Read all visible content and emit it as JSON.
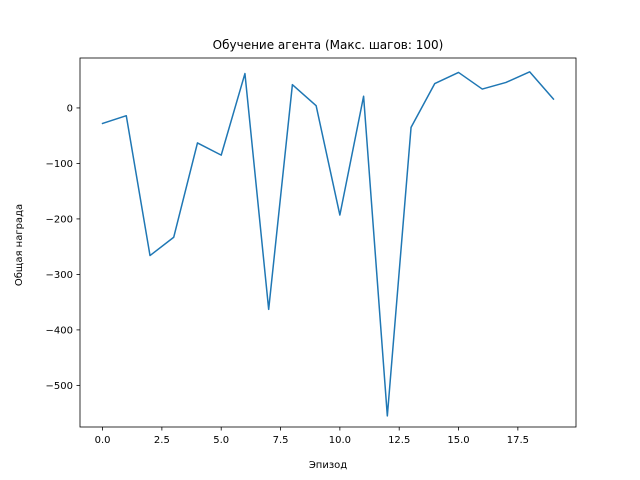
{
  "chart_data": {
    "type": "line",
    "title": "Обучение агента (Макс. шагов: 100)",
    "xlabel": "Эпизод",
    "ylabel": "Общая награда",
    "xlim": [
      -0.95,
      19.95
    ],
    "ylim": [
      -575,
      90
    ],
    "xticks": [
      0.0,
      2.5,
      5.0,
      7.5,
      10.0,
      12.5,
      15.0,
      17.5
    ],
    "xtick_labels": [
      "0.0",
      "2.5",
      "5.0",
      "7.5",
      "10.0",
      "12.5",
      "15.0",
      "17.5"
    ],
    "yticks": [
      0,
      -100,
      -200,
      -300,
      -400,
      -500
    ],
    "ytick_labels": [
      "0",
      "−100",
      "−200",
      "−300",
      "−400",
      "−500"
    ],
    "grid": false,
    "series": [
      {
        "color": "#1f77b4",
        "x": [
          0,
          1,
          2,
          3,
          4,
          5,
          6,
          7,
          8,
          9,
          10,
          11,
          12,
          13,
          14,
          15,
          16,
          17,
          18,
          19
        ],
        "values": [
          -28,
          -14,
          -266,
          -233,
          -63,
          -85,
          62,
          -363,
          42,
          4,
          -193,
          21,
          -555,
          -35,
          44,
          64,
          34,
          46,
          65,
          16
        ]
      }
    ]
  }
}
